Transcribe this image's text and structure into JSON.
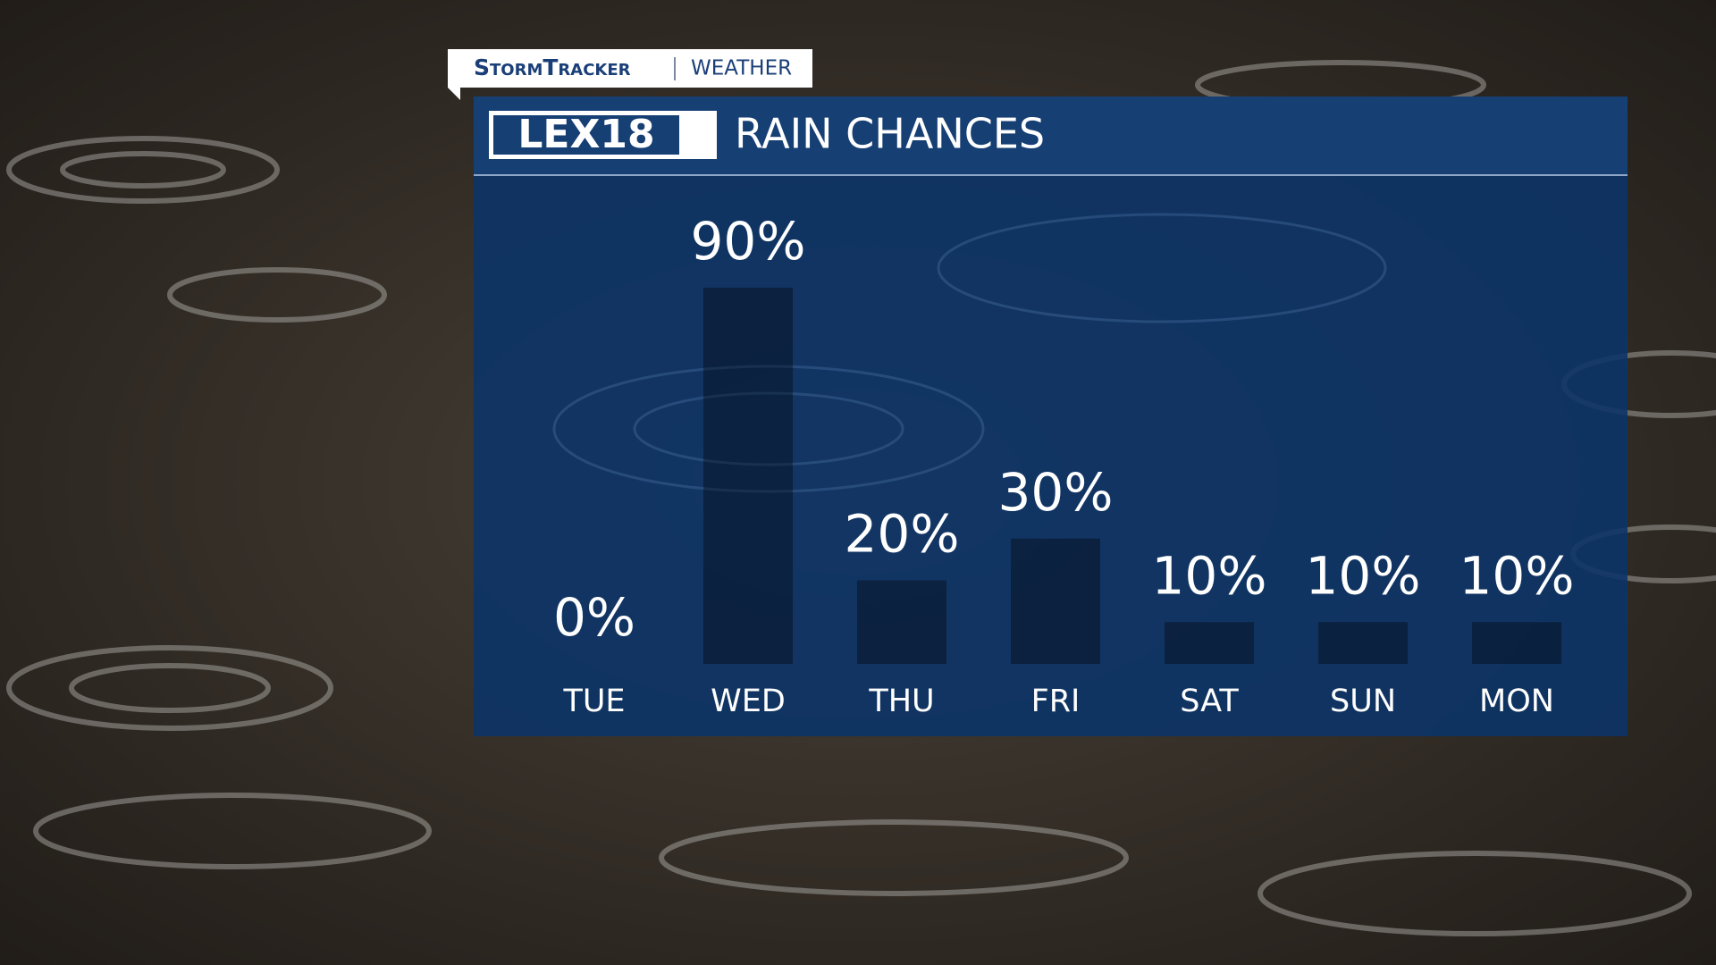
{
  "header": {
    "brand": "StormTracker",
    "section": "WEATHER",
    "logo": "LEX18"
  },
  "chart_data": {
    "type": "bar",
    "title": "RAIN CHANCES",
    "categories": [
      "TUE",
      "WED",
      "THU",
      "FRI",
      "SAT",
      "SUN",
      "MON"
    ],
    "values": [
      0,
      90,
      20,
      30,
      10,
      10,
      10
    ],
    "value_labels": [
      "0%",
      "90%",
      "20%",
      "30%",
      "10%",
      "10%",
      "10%"
    ],
    "colors": [
      null,
      "#1f9a1f",
      "#f2ec3a",
      "#5ef0c4",
      "#a8560f",
      "#a8560f",
      "#a8560f"
    ]
  }
}
